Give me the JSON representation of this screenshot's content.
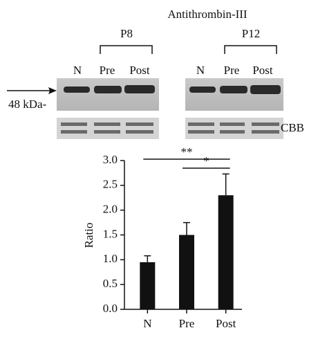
{
  "blot": {
    "title": "Antithrombin-III",
    "groups": [
      "P8",
      "P12"
    ],
    "lanes": [
      "N",
      "Pre",
      "Post",
      "N",
      "Pre",
      "Post"
    ],
    "marker": "48 kDa-",
    "stain": "CBB"
  },
  "chart_data": {
    "type": "bar",
    "categories": [
      "N",
      "Pre",
      "Post"
    ],
    "values": [
      0.95,
      1.5,
      2.3
    ],
    "errors": [
      0.13,
      0.25,
      0.43
    ],
    "color": "#111111",
    "y_label": "Ratio",
    "ylim": [
      0,
      3
    ],
    "yticks": [
      {
        "value": 0,
        "label": "0.0"
      },
      0.5,
      {
        "value": 1,
        "label": "1.0"
      },
      1.5,
      {
        "value": 2,
        "label": "2.0"
      },
      2.5,
      {
        "value": 3,
        "label": "3.0"
      }
    ],
    "annotations": [
      {
        "label": "**",
        "between": [
          "N",
          "Post"
        ]
      },
      {
        "label": "*",
        "between": [
          "Pre",
          "Post"
        ]
      }
    ]
  }
}
